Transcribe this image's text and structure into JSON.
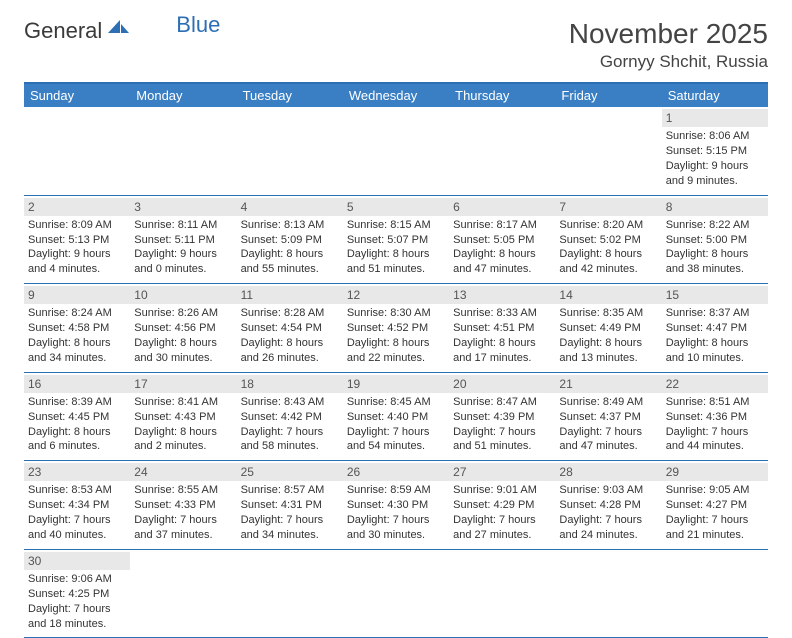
{
  "logo": {
    "part1": "General",
    "part2": "Blue"
  },
  "title": {
    "month_year": "November 2025",
    "location": "Gornyy Shchit, Russia"
  },
  "colors": {
    "header_bg": "#3a7fc4",
    "border": "#2d6fb5",
    "daynum_bg": "#e8e8e8",
    "text": "#333333",
    "title_text": "#444444"
  },
  "day_names": [
    "Sunday",
    "Monday",
    "Tuesday",
    "Wednesday",
    "Thursday",
    "Friday",
    "Saturday"
  ],
  "weeks": [
    [
      null,
      null,
      null,
      null,
      null,
      null,
      {
        "n": "1",
        "sunrise": "Sunrise: 8:06 AM",
        "sunset": "Sunset: 5:15 PM",
        "day1": "Daylight: 9 hours",
        "day2": "and 9 minutes."
      }
    ],
    [
      {
        "n": "2",
        "sunrise": "Sunrise: 8:09 AM",
        "sunset": "Sunset: 5:13 PM",
        "day1": "Daylight: 9 hours",
        "day2": "and 4 minutes."
      },
      {
        "n": "3",
        "sunrise": "Sunrise: 8:11 AM",
        "sunset": "Sunset: 5:11 PM",
        "day1": "Daylight: 9 hours",
        "day2": "and 0 minutes."
      },
      {
        "n": "4",
        "sunrise": "Sunrise: 8:13 AM",
        "sunset": "Sunset: 5:09 PM",
        "day1": "Daylight: 8 hours",
        "day2": "and 55 minutes."
      },
      {
        "n": "5",
        "sunrise": "Sunrise: 8:15 AM",
        "sunset": "Sunset: 5:07 PM",
        "day1": "Daylight: 8 hours",
        "day2": "and 51 minutes."
      },
      {
        "n": "6",
        "sunrise": "Sunrise: 8:17 AM",
        "sunset": "Sunset: 5:05 PM",
        "day1": "Daylight: 8 hours",
        "day2": "and 47 minutes."
      },
      {
        "n": "7",
        "sunrise": "Sunrise: 8:20 AM",
        "sunset": "Sunset: 5:02 PM",
        "day1": "Daylight: 8 hours",
        "day2": "and 42 minutes."
      },
      {
        "n": "8",
        "sunrise": "Sunrise: 8:22 AM",
        "sunset": "Sunset: 5:00 PM",
        "day1": "Daylight: 8 hours",
        "day2": "and 38 minutes."
      }
    ],
    [
      {
        "n": "9",
        "sunrise": "Sunrise: 8:24 AM",
        "sunset": "Sunset: 4:58 PM",
        "day1": "Daylight: 8 hours",
        "day2": "and 34 minutes."
      },
      {
        "n": "10",
        "sunrise": "Sunrise: 8:26 AM",
        "sunset": "Sunset: 4:56 PM",
        "day1": "Daylight: 8 hours",
        "day2": "and 30 minutes."
      },
      {
        "n": "11",
        "sunrise": "Sunrise: 8:28 AM",
        "sunset": "Sunset: 4:54 PM",
        "day1": "Daylight: 8 hours",
        "day2": "and 26 minutes."
      },
      {
        "n": "12",
        "sunrise": "Sunrise: 8:30 AM",
        "sunset": "Sunset: 4:52 PM",
        "day1": "Daylight: 8 hours",
        "day2": "and 22 minutes."
      },
      {
        "n": "13",
        "sunrise": "Sunrise: 8:33 AM",
        "sunset": "Sunset: 4:51 PM",
        "day1": "Daylight: 8 hours",
        "day2": "and 17 minutes."
      },
      {
        "n": "14",
        "sunrise": "Sunrise: 8:35 AM",
        "sunset": "Sunset: 4:49 PM",
        "day1": "Daylight: 8 hours",
        "day2": "and 13 minutes."
      },
      {
        "n": "15",
        "sunrise": "Sunrise: 8:37 AM",
        "sunset": "Sunset: 4:47 PM",
        "day1": "Daylight: 8 hours",
        "day2": "and 10 minutes."
      }
    ],
    [
      {
        "n": "16",
        "sunrise": "Sunrise: 8:39 AM",
        "sunset": "Sunset: 4:45 PM",
        "day1": "Daylight: 8 hours",
        "day2": "and 6 minutes."
      },
      {
        "n": "17",
        "sunrise": "Sunrise: 8:41 AM",
        "sunset": "Sunset: 4:43 PM",
        "day1": "Daylight: 8 hours",
        "day2": "and 2 minutes."
      },
      {
        "n": "18",
        "sunrise": "Sunrise: 8:43 AM",
        "sunset": "Sunset: 4:42 PM",
        "day1": "Daylight: 7 hours",
        "day2": "and 58 minutes."
      },
      {
        "n": "19",
        "sunrise": "Sunrise: 8:45 AM",
        "sunset": "Sunset: 4:40 PM",
        "day1": "Daylight: 7 hours",
        "day2": "and 54 minutes."
      },
      {
        "n": "20",
        "sunrise": "Sunrise: 8:47 AM",
        "sunset": "Sunset: 4:39 PM",
        "day1": "Daylight: 7 hours",
        "day2": "and 51 minutes."
      },
      {
        "n": "21",
        "sunrise": "Sunrise: 8:49 AM",
        "sunset": "Sunset: 4:37 PM",
        "day1": "Daylight: 7 hours",
        "day2": "and 47 minutes."
      },
      {
        "n": "22",
        "sunrise": "Sunrise: 8:51 AM",
        "sunset": "Sunset: 4:36 PM",
        "day1": "Daylight: 7 hours",
        "day2": "and 44 minutes."
      }
    ],
    [
      {
        "n": "23",
        "sunrise": "Sunrise: 8:53 AM",
        "sunset": "Sunset: 4:34 PM",
        "day1": "Daylight: 7 hours",
        "day2": "and 40 minutes."
      },
      {
        "n": "24",
        "sunrise": "Sunrise: 8:55 AM",
        "sunset": "Sunset: 4:33 PM",
        "day1": "Daylight: 7 hours",
        "day2": "and 37 minutes."
      },
      {
        "n": "25",
        "sunrise": "Sunrise: 8:57 AM",
        "sunset": "Sunset: 4:31 PM",
        "day1": "Daylight: 7 hours",
        "day2": "and 34 minutes."
      },
      {
        "n": "26",
        "sunrise": "Sunrise: 8:59 AM",
        "sunset": "Sunset: 4:30 PM",
        "day1": "Daylight: 7 hours",
        "day2": "and 30 minutes."
      },
      {
        "n": "27",
        "sunrise": "Sunrise: 9:01 AM",
        "sunset": "Sunset: 4:29 PM",
        "day1": "Daylight: 7 hours",
        "day2": "and 27 minutes."
      },
      {
        "n": "28",
        "sunrise": "Sunrise: 9:03 AM",
        "sunset": "Sunset: 4:28 PM",
        "day1": "Daylight: 7 hours",
        "day2": "and 24 minutes."
      },
      {
        "n": "29",
        "sunrise": "Sunrise: 9:05 AM",
        "sunset": "Sunset: 4:27 PM",
        "day1": "Daylight: 7 hours",
        "day2": "and 21 minutes."
      }
    ],
    [
      {
        "n": "30",
        "sunrise": "Sunrise: 9:06 AM",
        "sunset": "Sunset: 4:25 PM",
        "day1": "Daylight: 7 hours",
        "day2": "and 18 minutes."
      },
      null,
      null,
      null,
      null,
      null,
      null
    ]
  ]
}
